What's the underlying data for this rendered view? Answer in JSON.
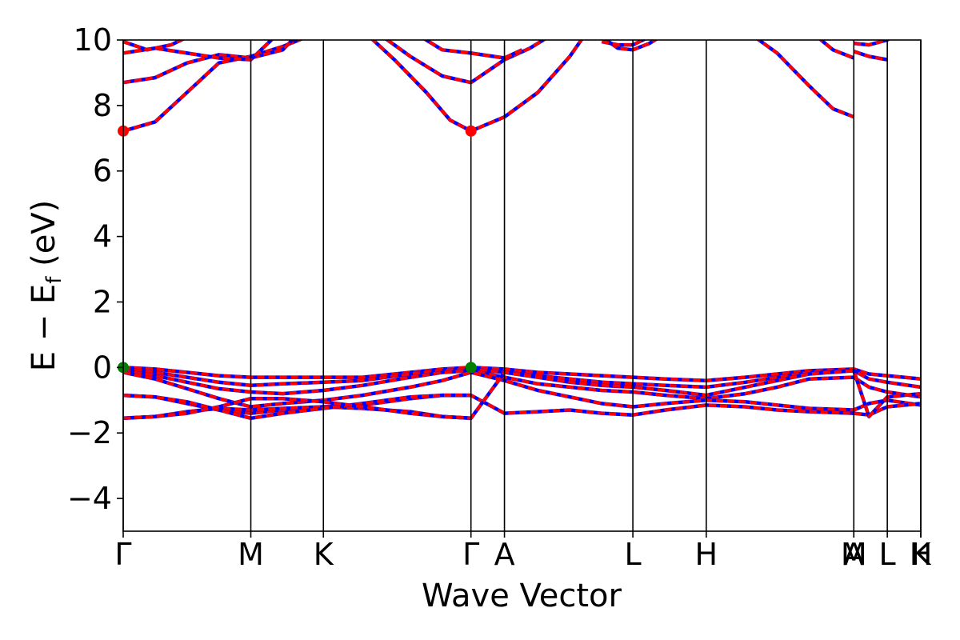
{
  "chart_data": {
    "type": "line",
    "xlabel": "Wave Vector",
    "ylabel": "E − E",
    "ylabel_sub": "f",
    "ylabel_unit": " (eV)",
    "ylim": [
      -5,
      10
    ],
    "yticks": [
      -4,
      -2,
      0,
      2,
      4,
      6,
      8,
      10
    ],
    "xlim": [
      0,
      100
    ],
    "kpoints": [
      {
        "label": "Γ",
        "x": 0
      },
      {
        "label": "M",
        "x": 16
      },
      {
        "label": "K",
        "x": 25.1
      },
      {
        "label": "Γ",
        "x": 43.6
      },
      {
        "label": "A",
        "x": 47.8
      },
      {
        "label": "L",
        "x": 63.9
      },
      {
        "label": "H",
        "x": 73.1
      },
      {
        "label": "A",
        "x": 91.6
      },
      {
        "label": "M",
        "x": 91.6
      },
      {
        "label": "L",
        "x": 95.8
      },
      {
        "label": "K",
        "x": 100
      },
      {
        "label": "H",
        "x": 100
      }
    ],
    "grid": false,
    "line_colors": {
      "spin_down": "#0000ff",
      "spin_up": "#ff0000"
    },
    "marker_colors": {
      "cbm": "#ff0000",
      "vbm": "#008000"
    },
    "markers": [
      {
        "type": "cbm",
        "x": 0,
        "y": 7.22
      },
      {
        "type": "cbm",
        "x": 43.6,
        "y": 7.22
      },
      {
        "type": "vbm",
        "x": 0,
        "y": 0
      },
      {
        "type": "vbm",
        "x": 43.6,
        "y": 0
      }
    ],
    "bands": [
      {
        "x": [
          0,
          4,
          8,
          12,
          16,
          20,
          25.1
        ],
        "y": [
          7.22,
          7.5,
          8.4,
          9.3,
          9.5,
          9.8,
          10.3
        ]
      },
      {
        "x": [
          0,
          4,
          8,
          12,
          16,
          20,
          22
        ],
        "y": [
          8.7,
          8.85,
          9.3,
          9.55,
          9.45,
          9.7,
          10.2
        ]
      },
      {
        "x": [
          0,
          4,
          8,
          12,
          16,
          19
        ],
        "y": [
          9.6,
          9.75,
          9.6,
          9.45,
          9.4,
          10.1
        ]
      },
      {
        "x": [
          0,
          3,
          6,
          9
        ],
        "y": [
          9.95,
          9.7,
          9.85,
          10.2
        ]
      },
      {
        "x": [
          30,
          34,
          38,
          41,
          43.6,
          47.8,
          52,
          56,
          58
        ],
        "y": [
          10.3,
          9.4,
          8.4,
          7.55,
          7.22,
          7.65,
          8.4,
          9.5,
          10.2
        ]
      },
      {
        "x": [
          32,
          36,
          40,
          43.6,
          47.8,
          51,
          54
        ],
        "y": [
          10.2,
          9.5,
          8.9,
          8.7,
          9.4,
          9.75,
          10.2
        ]
      },
      {
        "x": [
          36,
          40,
          43.6,
          47.8,
          50
        ],
        "y": [
          10.3,
          9.7,
          9.6,
          9.45,
          9.7
        ]
      },
      {
        "x": [
          60,
          62,
          63.9,
          66,
          68
        ],
        "y": [
          10.1,
          9.75,
          9.7,
          9.9,
          10.2
        ]
      },
      {
        "x": [
          60,
          62,
          63.9,
          66
        ],
        "y": [
          9.95,
          9.85,
          9.85,
          10.1
        ]
      },
      {
        "x": [
          78,
          82,
          86,
          89,
          91.6
        ],
        "y": [
          10.3,
          9.6,
          8.6,
          7.9,
          7.65
        ]
      },
      {
        "x": [
          87,
          89,
          91.6
        ],
        "y": [
          10.1,
          9.7,
          9.45
        ]
      },
      {
        "x": [
          91.6,
          93.5,
          95.8
        ],
        "y": [
          9.65,
          9.5,
          9.4
        ]
      },
      {
        "x": [
          91.6,
          93.5,
          95.8,
          97
        ],
        "y": [
          9.9,
          9.85,
          10,
          10.2
        ]
      },
      {
        "x": [
          0,
          4,
          8,
          12,
          16,
          20,
          25.1,
          30,
          36,
          40,
          43.6,
          47.8,
          52,
          56,
          60,
          63.9,
          68,
          73.1,
          78,
          82,
          86,
          91.6,
          93.5,
          95.8,
          100
        ],
        "y": [
          0,
          -0.05,
          -0.15,
          -0.25,
          -0.3,
          -0.3,
          -0.3,
          -0.3,
          -0.15,
          -0.05,
          0,
          -0.05,
          -0.15,
          -0.2,
          -0.25,
          -0.3,
          -0.35,
          -0.4,
          -0.3,
          -0.2,
          -0.1,
          -0.05,
          -0.2,
          -0.25,
          -0.35
        ]
      },
      {
        "x": [
          0,
          4,
          8,
          12,
          16,
          20,
          25.1,
          30,
          36,
          40,
          43.6,
          47.8,
          52,
          56,
          60,
          63.9,
          68,
          73.1,
          78,
          82,
          86,
          91.6,
          93.5,
          95.8,
          100
        ],
        "y": [
          -0.05,
          -0.15,
          -0.3,
          -0.45,
          -0.55,
          -0.5,
          -0.45,
          -0.4,
          -0.2,
          -0.1,
          -0.05,
          -0.15,
          -0.25,
          -0.35,
          -0.45,
          -0.5,
          -0.55,
          -0.6,
          -0.45,
          -0.3,
          -0.15,
          -0.1,
          -0.35,
          -0.45,
          -0.6
        ]
      },
      {
        "x": [
          0,
          4,
          8,
          12,
          16,
          20,
          25.1,
          30,
          36,
          40,
          43.6,
          47.8,
          52,
          56,
          60,
          63.9,
          68,
          73.1,
          78,
          82,
          86,
          91.6,
          93.5,
          95.8,
          100
        ],
        "y": [
          -0.1,
          -0.25,
          -0.45,
          -0.65,
          -0.75,
          -0.8,
          -0.7,
          -0.55,
          -0.3,
          -0.15,
          -0.1,
          -0.3,
          -0.5,
          -0.6,
          -0.7,
          -0.75,
          -0.85,
          -0.95,
          -0.8,
          -0.6,
          -0.35,
          -0.3,
          -0.6,
          -0.75,
          -0.9
        ]
      },
      {
        "x": [
          0,
          4,
          8,
          12,
          16,
          20,
          25.1,
          30,
          36,
          40,
          43.6,
          47.8,
          52,
          56,
          60,
          63.9,
          68,
          73.1,
          78,
          82,
          86,
          91.6,
          93.5,
          95.8,
          100
        ],
        "y": [
          -0.15,
          -0.35,
          -0.65,
          -0.95,
          -1.2,
          -1.1,
          -1.0,
          -0.85,
          -0.6,
          -0.4,
          -0.15,
          -0.4,
          -0.7,
          -0.9,
          -1.1,
          -1.2,
          -1.1,
          -1.0,
          -1.05,
          -1.15,
          -1.25,
          -1.3,
          -1.1,
          -1.0,
          -1.15
        ]
      },
      {
        "x": [
          0,
          4,
          8,
          12,
          16,
          20,
          25.1,
          30,
          36,
          40,
          43.6,
          47.8,
          52,
          56,
          60,
          63.9,
          68,
          73.1,
          78,
          82,
          86,
          91.6,
          93.5,
          95.8,
          100
        ],
        "y": [
          -0.85,
          -0.9,
          -1.1,
          -1.3,
          -1.4,
          -1.3,
          -1.2,
          -1.15,
          -0.95,
          -0.85,
          -0.85,
          -1.4,
          -1.35,
          -1.3,
          -1.4,
          -1.45,
          -1.3,
          -1.15,
          -1.2,
          -1.3,
          -1.35,
          -1.4,
          -1.45,
          -1.2,
          -1.1
        ]
      },
      {
        "x": [
          0,
          4,
          8,
          12,
          16,
          20,
          25.1,
          30,
          36,
          40,
          43.6,
          47.8,
          52,
          56,
          60,
          63.9,
          68,
          73.1,
          78,
          82,
          86,
          91.6,
          93.5,
          95.8,
          100
        ],
        "y": [
          -1.55,
          -1.5,
          -1.35,
          -1.25,
          -1.3,
          -1.25,
          -1.2,
          -1.25,
          -1.35,
          -1.5,
          -1.55,
          -0.15,
          -0.3,
          -0.45,
          -0.55,
          -0.6,
          -0.7,
          -0.85,
          -0.6,
          -0.4,
          -0.2,
          -0.1,
          -1.5,
          -0.9,
          -0.8
        ]
      },
      {
        "x": [
          0,
          4,
          8,
          12,
          16,
          20,
          25.1,
          30,
          36,
          40,
          43.6
        ],
        "y": [
          -0.85,
          -0.9,
          -1.05,
          -1.3,
          -1.55,
          -1.4,
          -1.25,
          -1.1,
          -0.9,
          -0.85,
          -0.85
        ]
      },
      {
        "x": [
          0,
          4,
          8,
          12,
          16,
          20,
          25.1,
          30,
          36,
          40,
          43.6
        ],
        "y": [
          -1.55,
          -1.5,
          -1.4,
          -1.2,
          -0.95,
          -0.95,
          -1.05,
          -1.2,
          -1.4,
          -1.5,
          -1.55
        ]
      }
    ]
  }
}
